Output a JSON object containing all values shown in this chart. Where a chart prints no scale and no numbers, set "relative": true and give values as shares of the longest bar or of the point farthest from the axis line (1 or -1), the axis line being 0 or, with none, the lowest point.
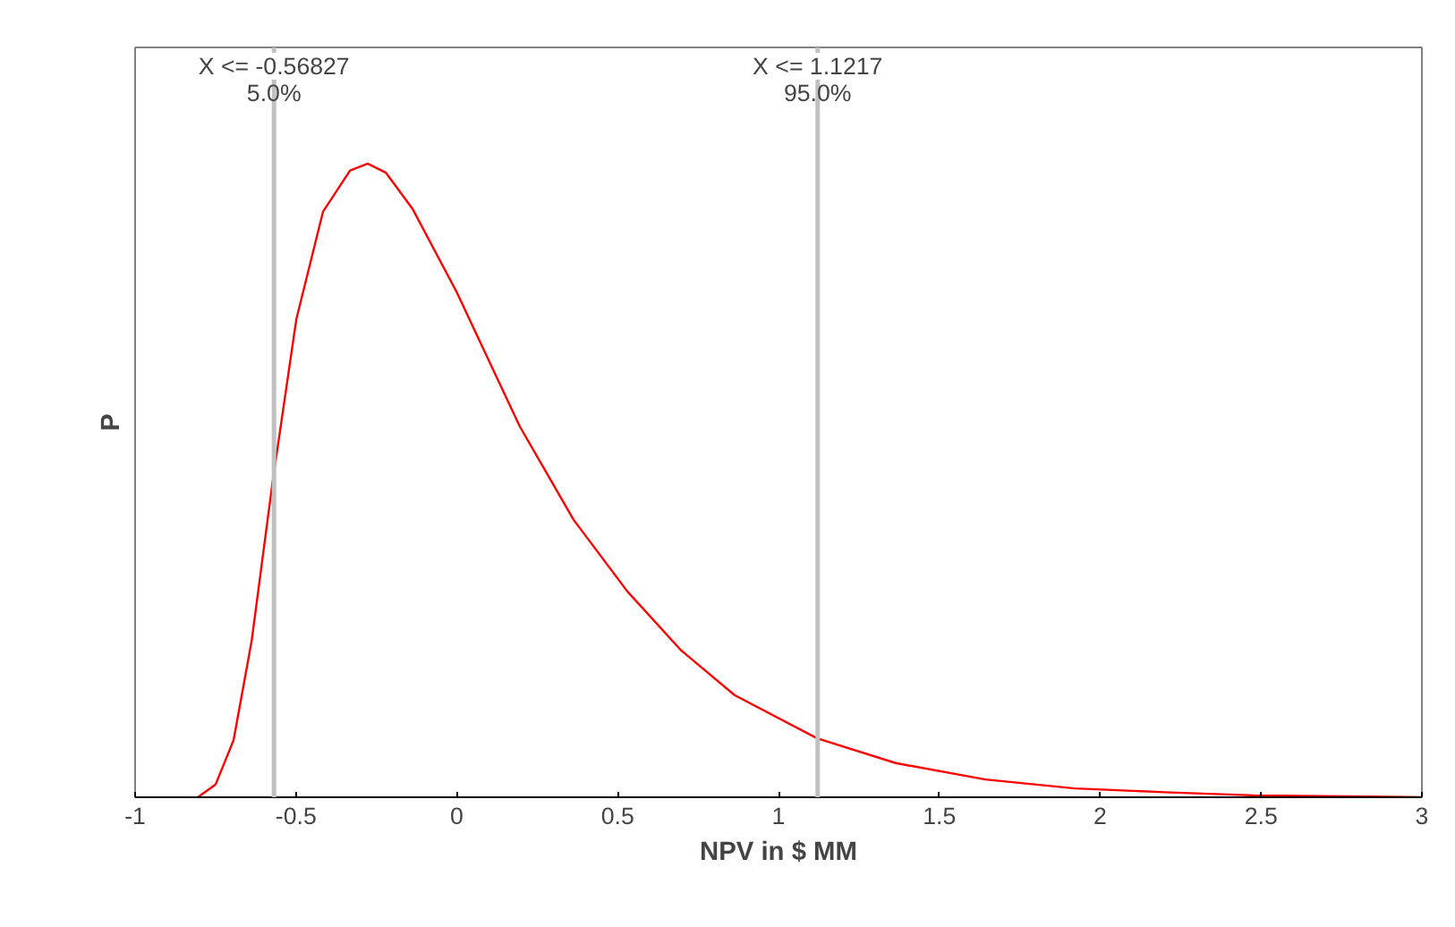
{
  "chart_data": {
    "type": "line",
    "relative": true,
    "xlabel": "NPV in $ MM",
    "ylabel": "P",
    "x": [
      -0.805,
      -0.75,
      -0.694,
      -0.638,
      -0.572,
      -0.499,
      -0.416,
      -0.332,
      -0.277,
      -0.221,
      -0.138,
      0.0,
      0.196,
      0.363,
      0.53,
      0.697,
      0.864,
      1.12,
      1.364,
      1.643,
      1.921,
      2.199,
      2.477,
      3.0
    ],
    "series": [
      {
        "color": "#ff0000",
        "values": [
          0,
          0.02,
          0.09,
          0.246,
          0.5,
          0.754,
          0.924,
          0.989,
          1.0,
          0.986,
          0.929,
          0.797,
          0.585,
          0.438,
          0.325,
          0.232,
          0.161,
          0.093,
          0.054,
          0.028,
          0.014,
          0.008,
          0.003,
          0
        ]
      }
    ],
    "xlim": [
      -1,
      3
    ],
    "xticks": [
      -1,
      -0.5,
      0,
      0.5,
      1,
      1.5,
      2,
      2.5,
      3
    ],
    "tick_labels": "x",
    "grid": false,
    "marker": "none",
    "line_style": "solid",
    "ref_lines": [
      {
        "axis": "x",
        "value": -0.56827,
        "label": "X <= -0.56827\n5.0%",
        "color": "#c0c0c0"
      },
      {
        "axis": "x",
        "value": 1.1217,
        "label": "X <= 1.1217\n95.0%",
        "color": "#c0c0c0"
      }
    ]
  }
}
